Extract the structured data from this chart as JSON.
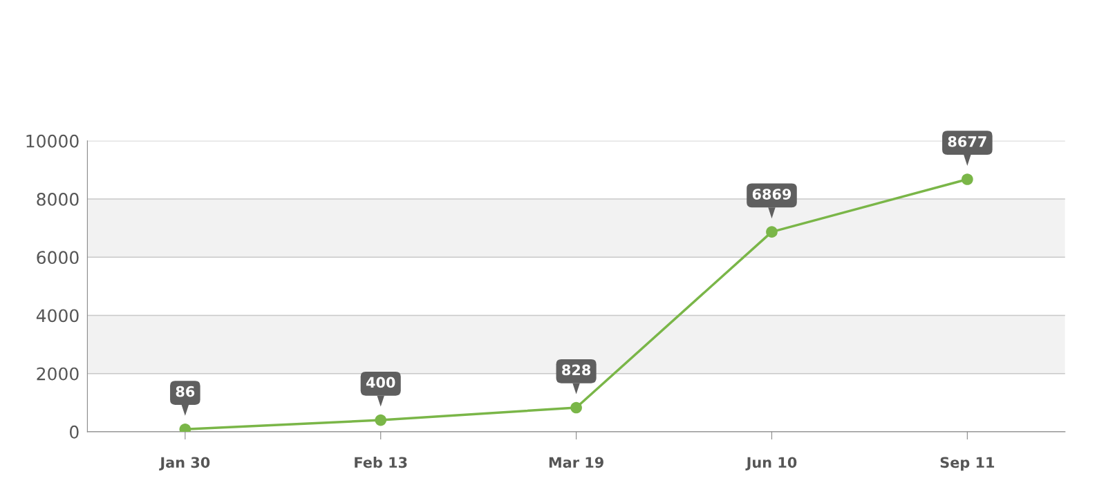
{
  "chart_data": {
    "type": "line",
    "categories": [
      "Jan 30",
      "Feb 13",
      "Mar 19",
      "Jun 10",
      "Sep 11"
    ],
    "series": [
      {
        "color": "#7ab648",
        "values": [
          86,
          400,
          828,
          6869,
          8677
        ]
      }
    ],
    "ylim": [
      0,
      10000
    ],
    "yticks": [
      0,
      2000,
      4000,
      6000,
      8000,
      10000
    ],
    "grid": "y",
    "marker": "circle",
    "line_style": "solid",
    "data_labels": true,
    "legend": false,
    "bands": [
      {
        "axis": "y",
        "from": 2000,
        "to": 4000,
        "color": "#f2f2f2"
      },
      {
        "axis": "y",
        "from": 6000,
        "to": 8000,
        "color": "#f2f2f2"
      }
    ]
  }
}
